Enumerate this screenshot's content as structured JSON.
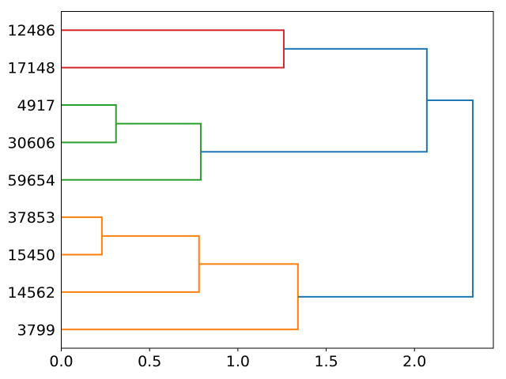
{
  "figure": {
    "background": "#ffffff",
    "title": ""
  },
  "chart_data": {
    "type": "dendrogram",
    "orientation": "right",
    "title": "",
    "xlabel": "",
    "ylabel": "",
    "grid": false,
    "legend": null,
    "leaf_labels": [
      "12486",
      "17148",
      "4917",
      "30606",
      "59654",
      "37853",
      "15450",
      "14562",
      "3799"
    ],
    "leaf_positions": [
      5,
      15,
      25,
      35,
      45,
      55,
      65,
      75,
      85
    ],
    "x_ticks": [
      0.0,
      0.5,
      1.0,
      1.5,
      2.0
    ],
    "x_tick_labels": [
      "0.0",
      "0.5",
      "1.0",
      "1.5",
      "2.0"
    ],
    "xlim": [
      0,
      2.4465
    ],
    "ylim": [
      0,
      90
    ],
    "palette": {
      "blue": "#1f77b4",
      "orange": "#ff7f0e",
      "green": "#2ca02c",
      "red": "#d62728"
    },
    "clusters": [
      {
        "color": "red",
        "members": [
          "12486",
          "17148"
        ]
      },
      {
        "color": "green",
        "members": [
          "4917",
          "30606",
          "59654"
        ]
      },
      {
        "color": "orange",
        "members": [
          "37853",
          "15450",
          "14562",
          "3799"
        ]
      }
    ],
    "links": [
      {
        "icoord": [
          5,
          5,
          15,
          15
        ],
        "dcoord": [
          0,
          1.26,
          1.26,
          0
        ],
        "color": "red"
      },
      {
        "icoord": [
          25,
          25,
          35,
          35
        ],
        "dcoord": [
          0,
          0.31,
          0.31,
          0
        ],
        "color": "green"
      },
      {
        "icoord": [
          30,
          30,
          45,
          45
        ],
        "dcoord": [
          0.31,
          0.79,
          0.79,
          0
        ],
        "color": "green"
      },
      {
        "icoord": [
          55,
          55,
          65,
          65
        ],
        "dcoord": [
          0,
          0.23,
          0.23,
          0
        ],
        "color": "orange"
      },
      {
        "icoord": [
          60,
          60,
          75,
          75
        ],
        "dcoord": [
          0.23,
          0.78,
          0.78,
          0
        ],
        "color": "orange"
      },
      {
        "icoord": [
          67.5,
          67.5,
          85,
          85
        ],
        "dcoord": [
          0.78,
          1.34,
          1.34,
          0
        ],
        "color": "orange"
      },
      {
        "icoord": [
          10,
          10,
          37.5,
          37.5
        ],
        "dcoord": [
          1.26,
          2.07,
          2.07,
          0.79
        ],
        "color": "blue"
      },
      {
        "icoord": [
          23.75,
          23.75,
          76.25,
          76.25
        ],
        "dcoord": [
          2.07,
          2.33,
          2.33,
          1.34
        ],
        "color": "blue"
      }
    ],
    "merge_distances": [
      0.23,
      0.31,
      0.78,
      0.79,
      1.26,
      1.34,
      2.07,
      2.33
    ]
  }
}
